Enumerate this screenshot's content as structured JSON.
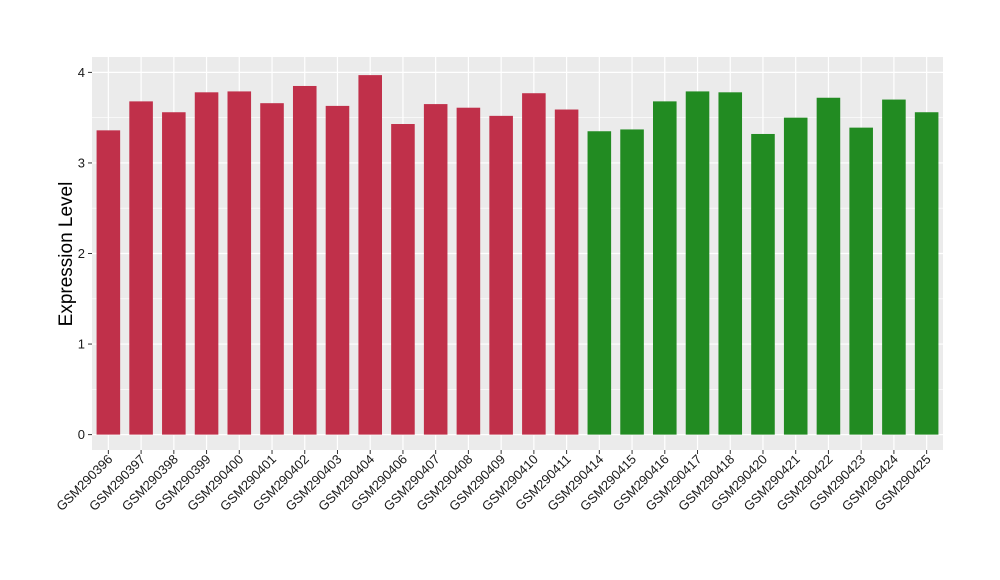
{
  "chart_data": {
    "type": "bar",
    "title": "",
    "xlabel": "",
    "ylabel": "Expression Level",
    "ylim": [
      -0.17,
      4.17
    ],
    "yticks": [
      0,
      1,
      2,
      3,
      4
    ],
    "grid": true,
    "colors": {
      "group_a": "#c0304a",
      "group_b": "#228b22",
      "panel": "#ebebeb",
      "grid": "#ffffff"
    },
    "categories": [
      "GSM290396",
      "GSM290397",
      "GSM290398",
      "GSM290399",
      "GSM290400",
      "GSM290401",
      "GSM290402",
      "GSM290403",
      "GSM290404",
      "GSM290406",
      "GSM290407",
      "GSM290408",
      "GSM290409",
      "GSM290410",
      "GSM290411",
      "GSM290414",
      "GSM290415",
      "GSM290416",
      "GSM290417",
      "GSM290418",
      "GSM290420",
      "GSM290421",
      "GSM290422",
      "GSM290423",
      "GSM290424",
      "GSM290425"
    ],
    "values": [
      3.36,
      3.68,
      3.56,
      3.78,
      3.79,
      3.66,
      3.85,
      3.63,
      3.97,
      3.43,
      3.65,
      3.61,
      3.52,
      3.77,
      3.59,
      3.35,
      3.37,
      3.68,
      3.79,
      3.78,
      3.32,
      3.5,
      3.72,
      3.39,
      3.7,
      3.56
    ],
    "bar_groups": [
      "a",
      "a",
      "a",
      "a",
      "a",
      "a",
      "a",
      "a",
      "a",
      "a",
      "a",
      "a",
      "a",
      "a",
      "a",
      "b",
      "b",
      "b",
      "b",
      "b",
      "b",
      "b",
      "b",
      "b",
      "b",
      "b"
    ]
  }
}
